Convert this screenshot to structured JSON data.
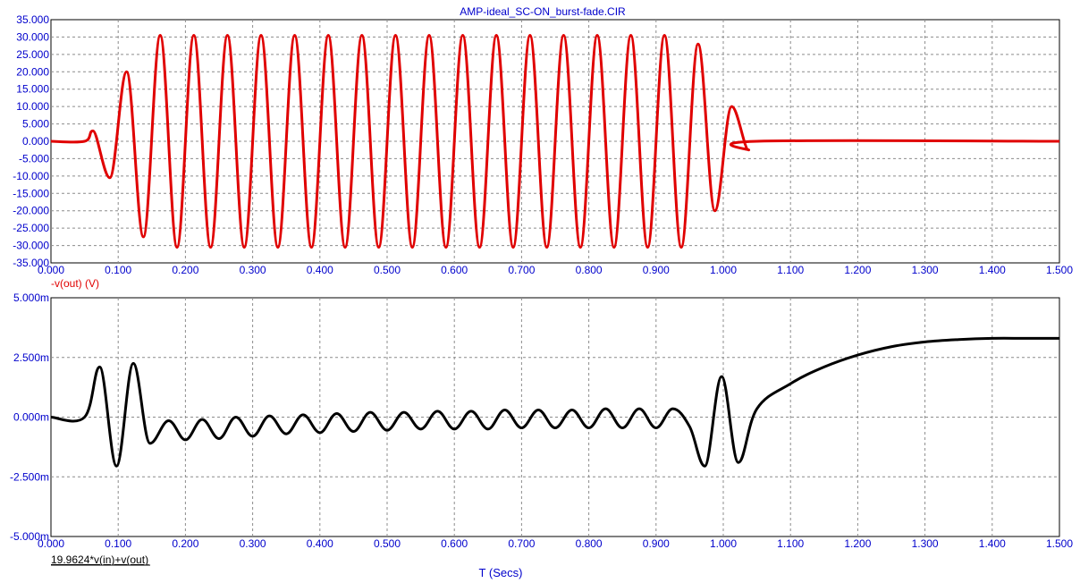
{
  "window": {
    "title": "AMP-ideal_SC-ON_burst-fade.CIR"
  },
  "chart_data": [
    {
      "type": "line",
      "title": "AMP-ideal_SC-ON_burst-fade.CIR",
      "ylabel": "-v(out) (V)",
      "xlabel": "",
      "xlim": [
        0,
        1.5
      ],
      "ylim": [
        -35,
        35
      ],
      "grid": true,
      "x_ticks": [
        "0.000",
        "0.100",
        "0.200",
        "0.300",
        "0.400",
        "0.500",
        "0.600",
        "0.700",
        "0.800",
        "0.900",
        "1.000",
        "1.100",
        "1.200",
        "1.300",
        "1.400",
        "1.500"
      ],
      "y_ticks": [
        "35.000",
        "30.000",
        "25.000",
        "20.000",
        "15.000",
        "10.000",
        "5.000",
        "0.000",
        "-5.000",
        "-10.000",
        "-15.000",
        "-20.000",
        "-25.000",
        "-30.000",
        "-35.000"
      ],
      "series": [
        {
          "name": "-v(out) (V)",
          "color": "#e00000",
          "x": [
            0.0,
            0.05,
            0.0625,
            0.0875,
            0.1125,
            0.1375,
            0.1625,
            0.1875,
            0.2125,
            0.2375,
            0.2625,
            0.2875,
            0.3125,
            0.3375,
            0.3625,
            0.3875,
            0.4125,
            0.4375,
            0.4625,
            0.4875,
            0.5125,
            0.5375,
            0.5625,
            0.5875,
            0.6125,
            0.6375,
            0.6625,
            0.6875,
            0.7125,
            0.7375,
            0.7625,
            0.7875,
            0.8125,
            0.8375,
            0.8625,
            0.8875,
            0.9125,
            0.9375,
            0.9625,
            0.9875,
            1.0125,
            1.0375,
            1.05,
            1.5
          ],
          "y": [
            0,
            0,
            3,
            -10.5,
            20,
            -27.5,
            30.5,
            -30.5,
            30.5,
            -30.5,
            30.5,
            -30.5,
            30.5,
            -30.5,
            30.5,
            -30.5,
            30.5,
            -30.5,
            30.5,
            -30.5,
            30.5,
            -30.5,
            30.5,
            -30.5,
            30.5,
            -30.5,
            30.5,
            -30.5,
            30.5,
            -30.5,
            30.5,
            -30.5,
            30.5,
            -30.5,
            30.5,
            -30.5,
            30.5,
            -30.5,
            28,
            -20,
            10,
            -2.5,
            0,
            0
          ]
        }
      ]
    },
    {
      "type": "line",
      "ylabel": "19.9624*v(in)+v(out)",
      "xlabel": "T (Secs)",
      "xlim": [
        0,
        1.5
      ],
      "ylim": [
        -5,
        5
      ],
      "grid": true,
      "x_ticks": [
        "0.000",
        "0.100",
        "0.200",
        "0.300",
        "0.400",
        "0.500",
        "0.600",
        "0.700",
        "0.800",
        "0.900",
        "1.000",
        "1.100",
        "1.200",
        "1.300",
        "1.400",
        "1.500"
      ],
      "y_ticks": [
        "5.000m",
        "2.500m",
        "0.000m",
        "-2.500m",
        "-5.000m"
      ],
      "series": [
        {
          "name": "19.9624*v(in)+v(out)",
          "color": "#000000",
          "x": [
            0.0,
            0.05,
            0.0725,
            0.0975,
            0.1225,
            0.1475,
            0.175,
            0.2,
            0.225,
            0.25,
            0.275,
            0.3,
            0.325,
            0.35,
            0.375,
            0.4,
            0.425,
            0.45,
            0.475,
            0.5,
            0.525,
            0.55,
            0.575,
            0.6,
            0.625,
            0.65,
            0.675,
            0.7,
            0.725,
            0.75,
            0.775,
            0.8,
            0.825,
            0.85,
            0.875,
            0.9,
            0.925,
            0.95,
            0.9725,
            0.9975,
            1.0225,
            1.05,
            1.1,
            1.15,
            1.2,
            1.25,
            1.3,
            1.35,
            1.4,
            1.45,
            1.5
          ],
          "y": [
            0,
            0,
            2.1,
            -2.05,
            2.25,
            -1.1,
            -0.15,
            -0.95,
            -0.1,
            -0.9,
            0,
            -0.8,
            0.05,
            -0.7,
            0.1,
            -0.65,
            0.15,
            -0.6,
            0.2,
            -0.55,
            0.2,
            -0.5,
            0.25,
            -0.5,
            0.25,
            -0.5,
            0.3,
            -0.45,
            0.3,
            -0.45,
            0.3,
            -0.45,
            0.35,
            -0.45,
            0.35,
            -0.45,
            0.35,
            -0.4,
            -2.05,
            1.7,
            -1.9,
            0.35,
            1.4,
            2.1,
            2.6,
            2.95,
            3.15,
            3.25,
            3.3,
            3.3,
            3.3
          ]
        }
      ]
    }
  ]
}
